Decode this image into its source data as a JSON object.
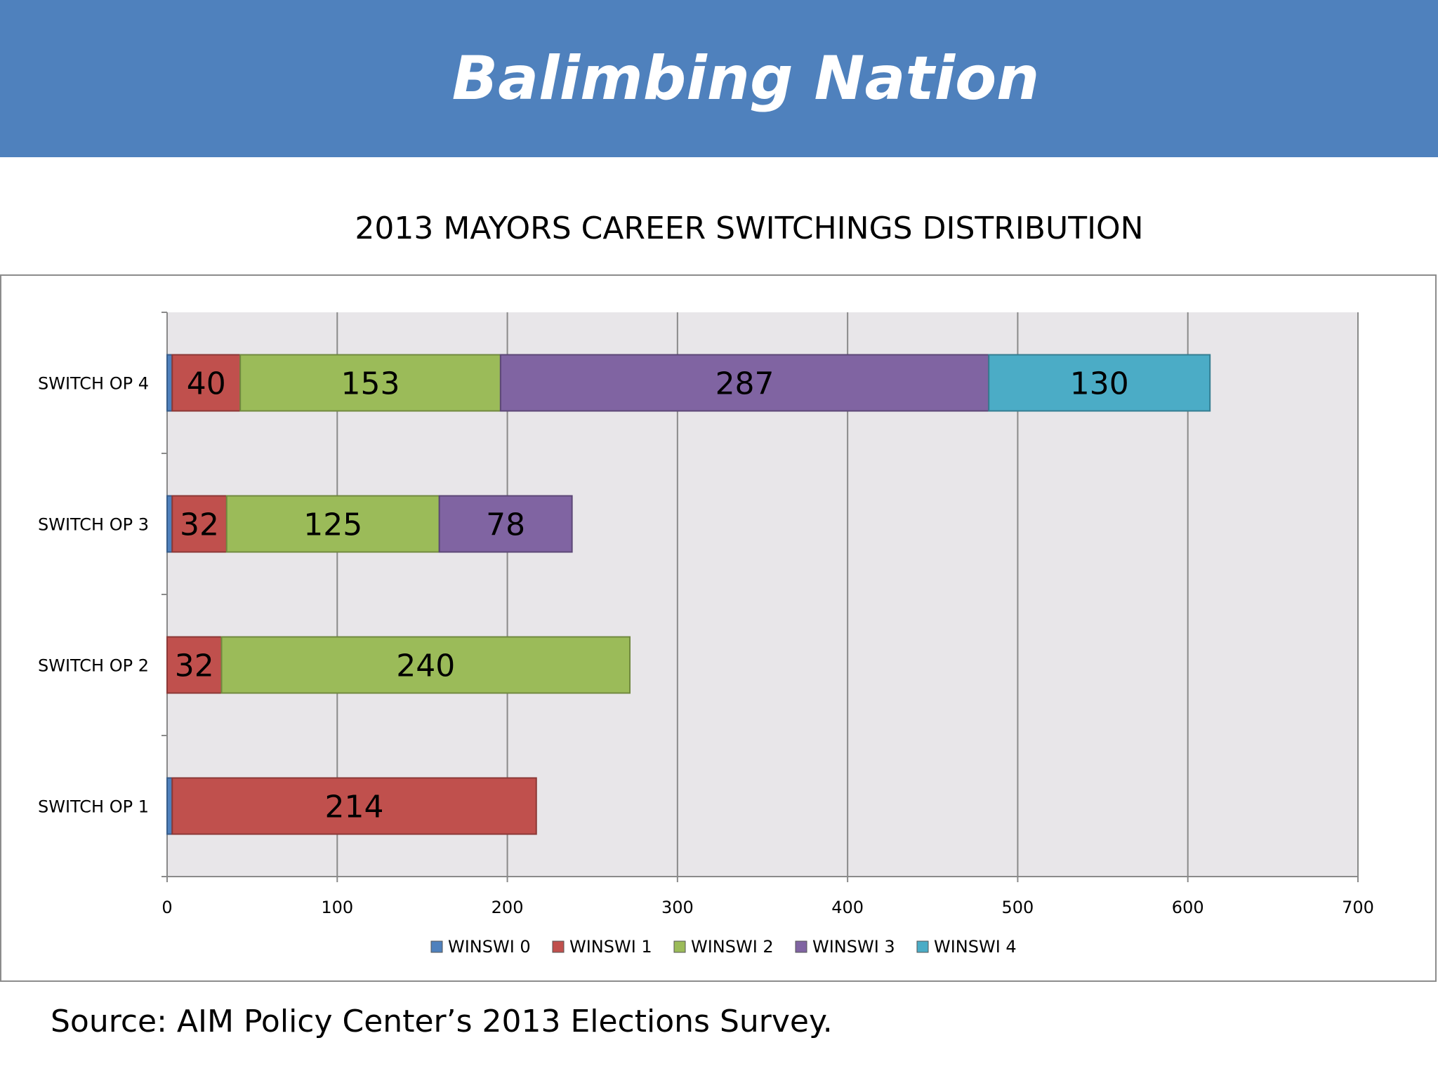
{
  "header": {
    "title": "Balimbing Nation"
  },
  "footer": {
    "source": "Source: AIM Policy Center’s 2013 Elections Survey."
  },
  "chart_data": {
    "type": "bar",
    "orientation": "horizontal",
    "stacked": true,
    "title": "2013 MAYORS CAREER SWITCHINGS DISTRIBUTION",
    "xlabel": "",
    "ylabel": "",
    "categories": [
      "SWITCH OP 1",
      "SWITCH OP 2",
      "SWITCH OP 3",
      "SWITCH OP 4"
    ],
    "series": [
      {
        "name": "WINSWI 0",
        "color": "#4f81bd",
        "values": [
          3,
          0,
          3,
          3
        ],
        "labels": [
          "",
          "",
          "",
          ""
        ]
      },
      {
        "name": "WINSWI 1",
        "color": "#c0504d",
        "values": [
          214,
          32,
          32,
          40
        ],
        "labels": [
          "214",
          "32",
          "32",
          "40"
        ]
      },
      {
        "name": "WINSWI 2",
        "color": "#9bbb59",
        "values": [
          0,
          240,
          125,
          153
        ],
        "labels": [
          "",
          "240",
          "125",
          "153"
        ]
      },
      {
        "name": "WINSWI 3",
        "color": "#8064a2",
        "values": [
          0,
          0,
          78,
          287
        ],
        "labels": [
          "",
          "",
          "78",
          "287"
        ]
      },
      {
        "name": "WINSWI 4",
        "color": "#4bacc6",
        "values": [
          0,
          0,
          0,
          130
        ],
        "labels": [
          "",
          "",
          "",
          "130"
        ]
      }
    ],
    "xlim": [
      0,
      700
    ],
    "xticks": [
      "0",
      "100",
      "200",
      "300",
      "400",
      "500",
      "600",
      "700"
    ],
    "grid": "vertical",
    "legend": "bottom",
    "plot_background": "#e8e6e9"
  }
}
